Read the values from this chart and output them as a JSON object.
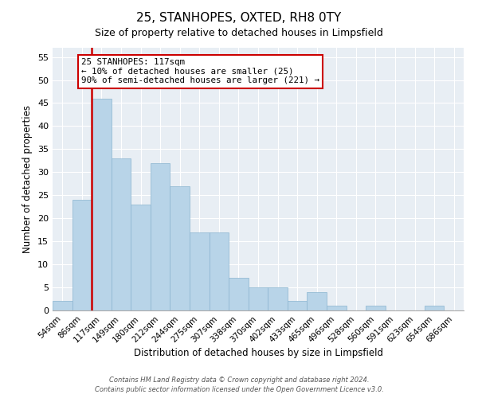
{
  "title": "25, STANHOPES, OXTED, RH8 0TY",
  "subtitle": "Size of property relative to detached houses in Limpsfield",
  "xlabel": "Distribution of detached houses by size in Limpsfield",
  "ylabel": "Number of detached properties",
  "footer_line1": "Contains HM Land Registry data © Crown copyright and database right 2024.",
  "footer_line2": "Contains public sector information licensed under the Open Government Licence v3.0.",
  "bin_labels": [
    "54sqm",
    "86sqm",
    "117sqm",
    "149sqm",
    "180sqm",
    "212sqm",
    "244sqm",
    "275sqm",
    "307sqm",
    "338sqm",
    "370sqm",
    "402sqm",
    "433sqm",
    "465sqm",
    "496sqm",
    "528sqm",
    "560sqm",
    "591sqm",
    "623sqm",
    "654sqm",
    "686sqm"
  ],
  "bar_values": [
    2,
    24,
    46,
    33,
    23,
    32,
    27,
    17,
    17,
    7,
    5,
    5,
    2,
    4,
    1,
    0,
    1,
    0,
    0,
    1,
    0
  ],
  "highlight_index": 2,
  "bar_color": "#b8d4e8",
  "bar_edge_color": "#8ab4d0",
  "highlight_line_color": "#cc0000",
  "ylim": [
    0,
    57
  ],
  "yticks": [
    0,
    5,
    10,
    15,
    20,
    25,
    30,
    35,
    40,
    45,
    50,
    55
  ],
  "annotation_title": "25 STANHOPES: 117sqm",
  "annotation_line1": "← 10% of detached houses are smaller (25)",
  "annotation_line2": "90% of semi-detached houses are larger (221) →",
  "background_color": "#e8eef4",
  "grid_color": "#ffffff"
}
